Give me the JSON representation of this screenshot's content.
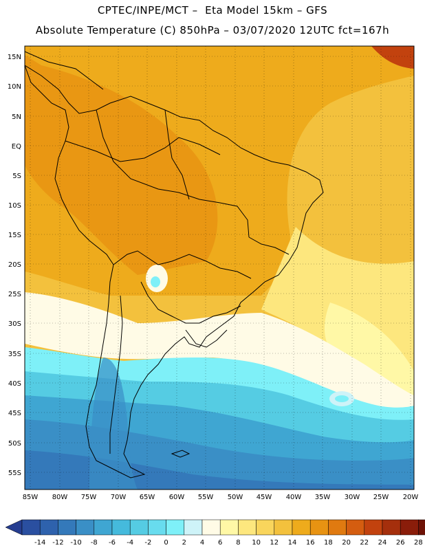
{
  "header": {
    "line1": "CPTEC/INPE/MCT –  Eta Model 15km – GFS",
    "line2": "Absolute Temperature (C) 850hPa – 03/07/2020 12UTC fct=167h"
  },
  "axes": {
    "lat_labels": [
      "15N",
      "10N",
      "5N",
      "EQ",
      "5S",
      "10S",
      "15S",
      "20S",
      "25S",
      "30S",
      "35S",
      "40S",
      "45S",
      "50S",
      "55S"
    ],
    "lon_labels": [
      "85W",
      "80W",
      "75W",
      "70W",
      "65W",
      "60W",
      "55W",
      "50W",
      "45W",
      "40W",
      "35W",
      "30W",
      "25W",
      "20W"
    ]
  },
  "colorbar": {
    "labels": [
      "-14",
      "-12",
      "-10",
      "-8",
      "-6",
      "-4",
      "-2",
      "0",
      "2",
      "4",
      "6",
      "8",
      "10",
      "12",
      "14",
      "16",
      "18",
      "20",
      "22",
      "24",
      "26",
      "28"
    ],
    "colors": [
      "#2a4fa0",
      "#2e62ad",
      "#3479ba",
      "#3a8fc6",
      "#3fa6d2",
      "#45badc",
      "#55cce3",
      "#68dcee",
      "#7ef0f8",
      "#cef3f8",
      "#fffbe6",
      "#fff8a6",
      "#fde77e",
      "#f9d55c",
      "#f3c13d",
      "#eeab1c",
      "#e89312",
      "#e07a10",
      "#d45d10",
      "#c2420e",
      "#a52f0c",
      "#8a1d0a",
      "#6e1206"
    ],
    "under_color": "#253d90",
    "over_color": "#7a0a10"
  }
}
